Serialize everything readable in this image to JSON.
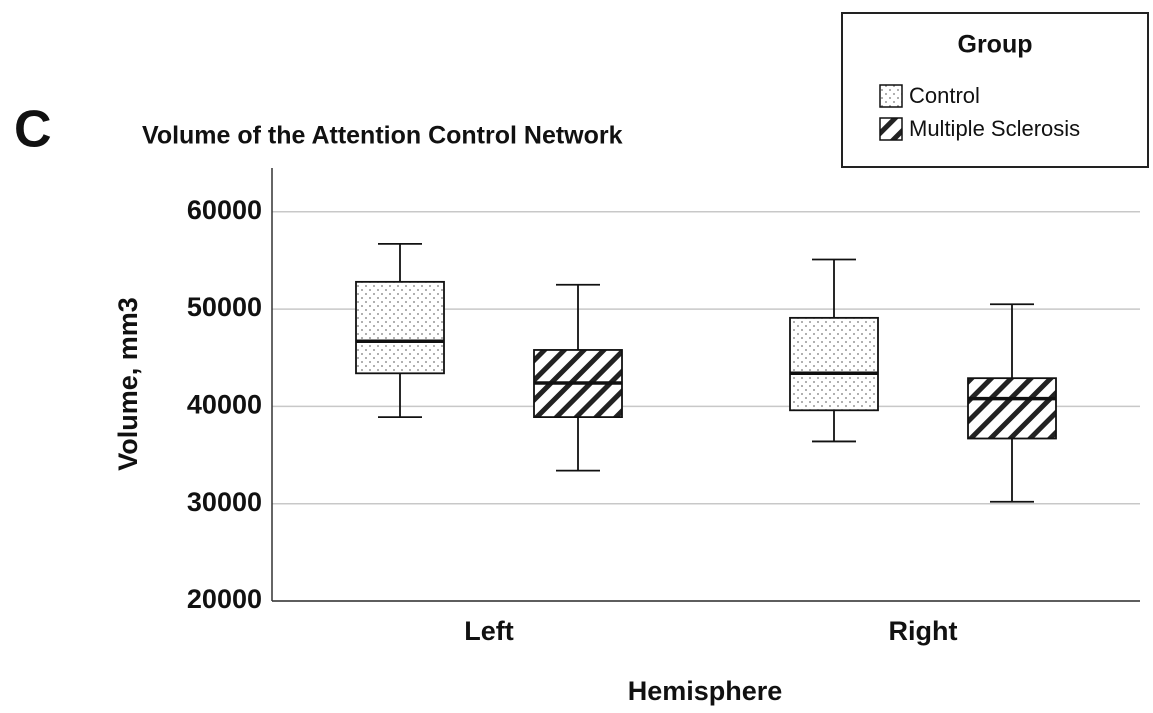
{
  "panel_label": "C",
  "chart_data": {
    "type": "box",
    "title": "Volume of the Attention Control Network",
    "x_label": "Hemisphere",
    "y_label": "Volume, mm3",
    "categories": [
      "Left",
      "Right"
    ],
    "ylim": [
      20000,
      64500
    ],
    "yticks": [
      20000,
      30000,
      40000,
      50000,
      60000
    ],
    "grid": true,
    "legend": {
      "title": "Group",
      "position": "top-right"
    },
    "series": [
      {
        "name": "Control",
        "pattern": "dots",
        "color": "#ffffff",
        "min": [
          38900,
          36400
        ],
        "q1": [
          43400,
          39600
        ],
        "median": [
          46700,
          43400
        ],
        "q3": [
          52800,
          49100
        ],
        "max": [
          56700,
          55100
        ]
      },
      {
        "name": "Multiple Sclerosis",
        "pattern": "hatch",
        "color": "#ffffff",
        "min": [
          33400,
          30200
        ],
        "q1": [
          38900,
          36700
        ],
        "median": [
          42400,
          40800
        ],
        "q3": [
          45800,
          42900
        ],
        "max": [
          52500,
          50500
        ]
      }
    ]
  }
}
